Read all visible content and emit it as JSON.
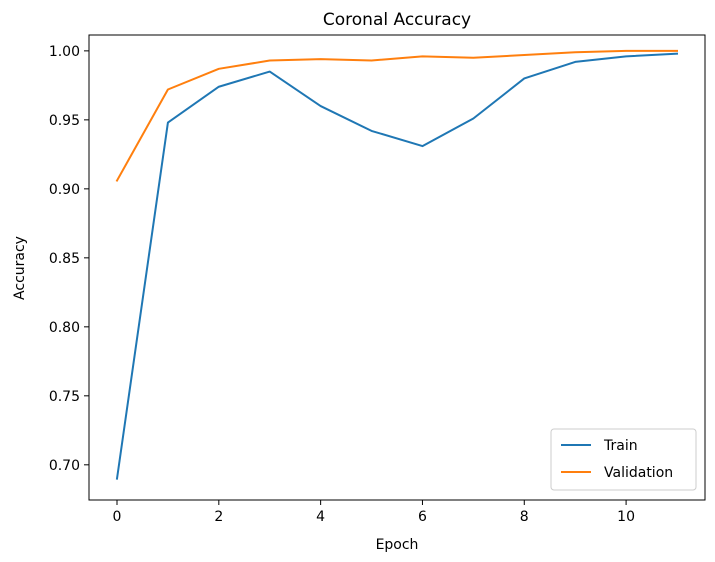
{
  "chart_data": {
    "type": "line",
    "title": "Coronal Accuracy",
    "xlabel": "Epoch",
    "ylabel": "Accuracy",
    "x": [
      0,
      1,
      2,
      3,
      4,
      5,
      6,
      7,
      8,
      9,
      10,
      11
    ],
    "xlim": [
      -0.55,
      11.55
    ],
    "ylim": [
      0.6745,
      1.0115
    ],
    "xticks": [
      0,
      2,
      4,
      6,
      8,
      10
    ],
    "yticks": [
      0.7,
      0.75,
      0.8,
      0.85,
      0.9,
      0.95,
      1.0
    ],
    "xtick_labels": [
      "0",
      "2",
      "4",
      "6",
      "8",
      "10"
    ],
    "ytick_labels": [
      "0.70",
      "0.75",
      "0.80",
      "0.85",
      "0.90",
      "0.95",
      "1.00"
    ],
    "grid": false,
    "legend_position": "lower-right",
    "series": [
      {
        "name": "Train",
        "color": "#1f77b4",
        "values": [
          0.69,
          0.948,
          0.974,
          0.985,
          0.96,
          0.942,
          0.931,
          0.951,
          0.98,
          0.992,
          0.996,
          0.998
        ]
      },
      {
        "name": "Validation",
        "color": "#ff7f0e",
        "values": [
          0.906,
          0.972,
          0.987,
          0.993,
          0.994,
          0.993,
          0.996,
          0.995,
          0.997,
          0.999,
          1.0,
          1.0
        ]
      }
    ]
  }
}
